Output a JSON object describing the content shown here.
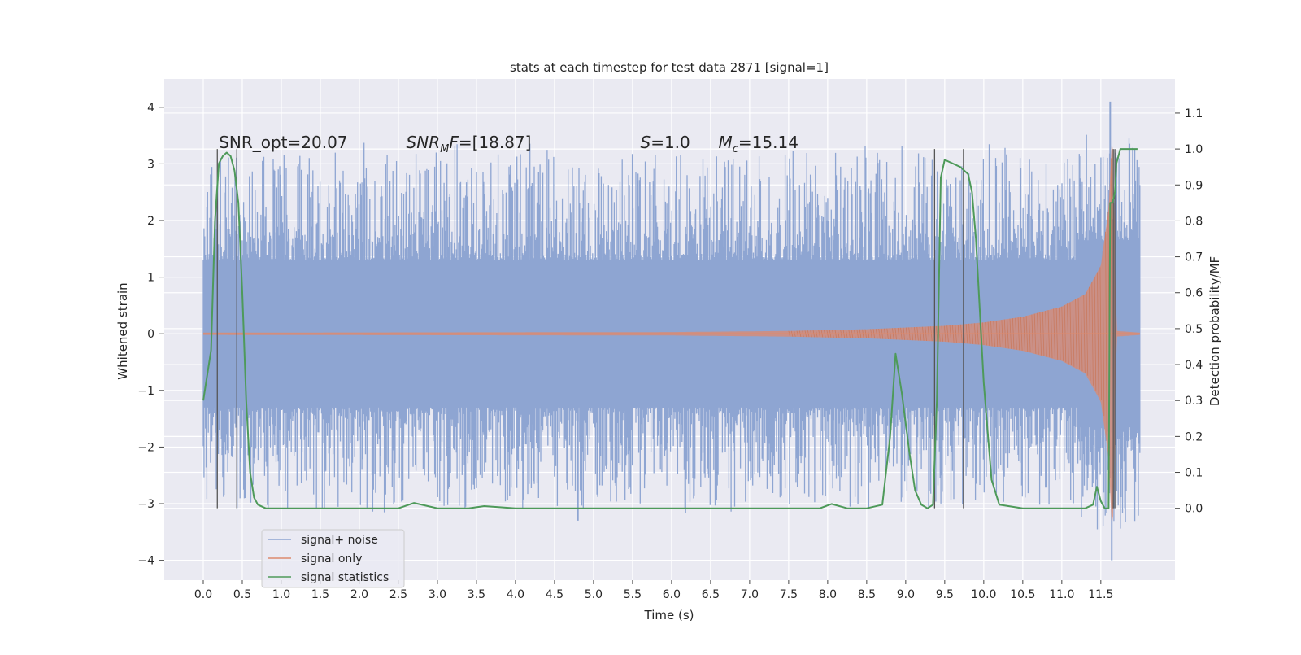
{
  "chart_data": {
    "type": "line",
    "title": "stats at each timestep for test data 2871 [signal=1]",
    "xlabel": "Time (s)",
    "ylabel_left": "Whitened strain",
    "ylabel_right": "Detection probability/MF",
    "xlim": [
      -0.5,
      12.45
    ],
    "ylim_left": [
      -4.35,
      4.5
    ],
    "ylim_right": [
      -0.2,
      1.195
    ],
    "x_ticks": [
      0.0,
      0.5,
      1.0,
      1.5,
      2.0,
      2.5,
      3.0,
      3.5,
      4.0,
      4.5,
      5.0,
      5.5,
      6.0,
      6.5,
      7.0,
      7.5,
      8.0,
      8.5,
      9.0,
      9.5,
      10.0,
      10.5,
      11.0,
      11.5
    ],
    "x_tick_labels": [
      "0.0",
      "0.5",
      "1.0",
      "1.5",
      "2.0",
      "2.5",
      "3.0",
      "3.5",
      "4.0",
      "4.5",
      "5.0",
      "5.5",
      "6.0",
      "6.5",
      "7.0",
      "7.5",
      "8.0",
      "8.5",
      "9.0",
      "9.5",
      "10.0",
      "10.5",
      "11.0",
      "11.5"
    ],
    "y_ticks_left": [
      4,
      3,
      2,
      1,
      0,
      -1,
      -2,
      -3,
      -4
    ],
    "y_tick_labels_left": [
      "4",
      "3",
      "2",
      "1",
      "0",
      "−1",
      "−2",
      "−3",
      "−4"
    ],
    "y_ticks_right": [
      1.1,
      1.0,
      0.9,
      0.8,
      0.7,
      0.6,
      0.5,
      0.4,
      0.3,
      0.2,
      0.1,
      0.0
    ],
    "y_tick_labels_right": [
      "1.1",
      "1.0",
      "0.9",
      "0.8",
      "0.7",
      "0.6",
      "0.5",
      "0.4",
      "0.3",
      "0.2",
      "0.1",
      "0.0"
    ],
    "grid": true,
    "legend_position": "lower-left",
    "annotations": [
      {
        "text": "SNR_opt=20.07",
        "x": 0.2,
        "y_right": 1.0
      },
      {
        "text": "SNR_MF=[18.87]",
        "x": 2.6,
        "y_right": 1.0
      },
      {
        "text": "S=1.0",
        "x": 5.6,
        "y_right": 1.0
      },
      {
        "text": "M_c=15.14",
        "x": 6.6,
        "y_right": 1.0
      }
    ],
    "vertical_lines_x": [
      0.18,
      0.43,
      9.37,
      9.74,
      11.66,
      11.68
    ],
    "noise_band": {
      "t_start": 0.0,
      "t_end": 12.0,
      "lower": -1.3,
      "upper": 1.3
    },
    "noise_spikes": {
      "max": 4.1,
      "min": -4.0,
      "notable_x": [
        4.8,
        11.62,
        11.64
      ]
    },
    "series": [
      {
        "name": "signal+ noise",
        "color": "#8ea5d2",
        "t_start": 0.0,
        "t_end": 12.0,
        "envelope": "noise"
      },
      {
        "name": "signal only",
        "color": "#dd8a6e",
        "t_merger": 11.65,
        "envelope_t": [
          0.0,
          6.0,
          7.5,
          8.5,
          9.0,
          9.5,
          10.0,
          10.5,
          11.0,
          11.3,
          11.5,
          11.6,
          11.65,
          11.7,
          12.0
        ],
        "envelope_amp": [
          0.02,
          0.03,
          0.05,
          0.08,
          0.11,
          0.14,
          0.2,
          0.3,
          0.48,
          0.7,
          1.2,
          2.2,
          3.7,
          0.05,
          0.02
        ]
      },
      {
        "name": "signal statistics",
        "color": "#4e9a5a",
        "axis": "right",
        "x": [
          0.0,
          0.05,
          0.1,
          0.15,
          0.2,
          0.25,
          0.3,
          0.35,
          0.4,
          0.45,
          0.5,
          0.55,
          0.6,
          0.65,
          0.7,
          0.8,
          1.0,
          2.0,
          2.5,
          2.7,
          2.9,
          3.0,
          3.4,
          3.6,
          3.8,
          4.0,
          5.0,
          6.0,
          7.0,
          7.5,
          7.9,
          8.05,
          8.25,
          8.5,
          8.7,
          8.8,
          8.87,
          8.95,
          9.05,
          9.12,
          9.2,
          9.28,
          9.35,
          9.4,
          9.45,
          9.5,
          9.7,
          9.8,
          9.85,
          9.9,
          10.0,
          10.1,
          10.2,
          10.5,
          11.0,
          11.3,
          11.4,
          11.45,
          11.5,
          11.55,
          11.6,
          11.62,
          11.65,
          11.68,
          11.7,
          11.75,
          11.8,
          11.9,
          11.97
        ],
        "y": [
          0.3,
          0.37,
          0.44,
          0.8,
          0.96,
          0.98,
          0.99,
          0.98,
          0.94,
          0.85,
          0.6,
          0.3,
          0.1,
          0.03,
          0.01,
          0.0,
          0.0,
          0.0,
          0.0,
          0.015,
          0.005,
          0.0,
          0.0,
          0.006,
          0.003,
          0.0,
          0.0,
          0.0,
          0.0,
          0.0,
          0.0,
          0.012,
          0.0,
          0.0,
          0.01,
          0.2,
          0.43,
          0.32,
          0.15,
          0.05,
          0.01,
          0.0,
          0.01,
          0.3,
          0.92,
          0.97,
          0.95,
          0.93,
          0.88,
          0.75,
          0.35,
          0.08,
          0.01,
          0.0,
          0.0,
          0.0,
          0.01,
          0.06,
          0.02,
          0.0,
          0.0,
          0.85,
          0.85,
          0.88,
          0.96,
          1.0,
          1.0,
          1.0,
          1.0
        ]
      }
    ]
  }
}
